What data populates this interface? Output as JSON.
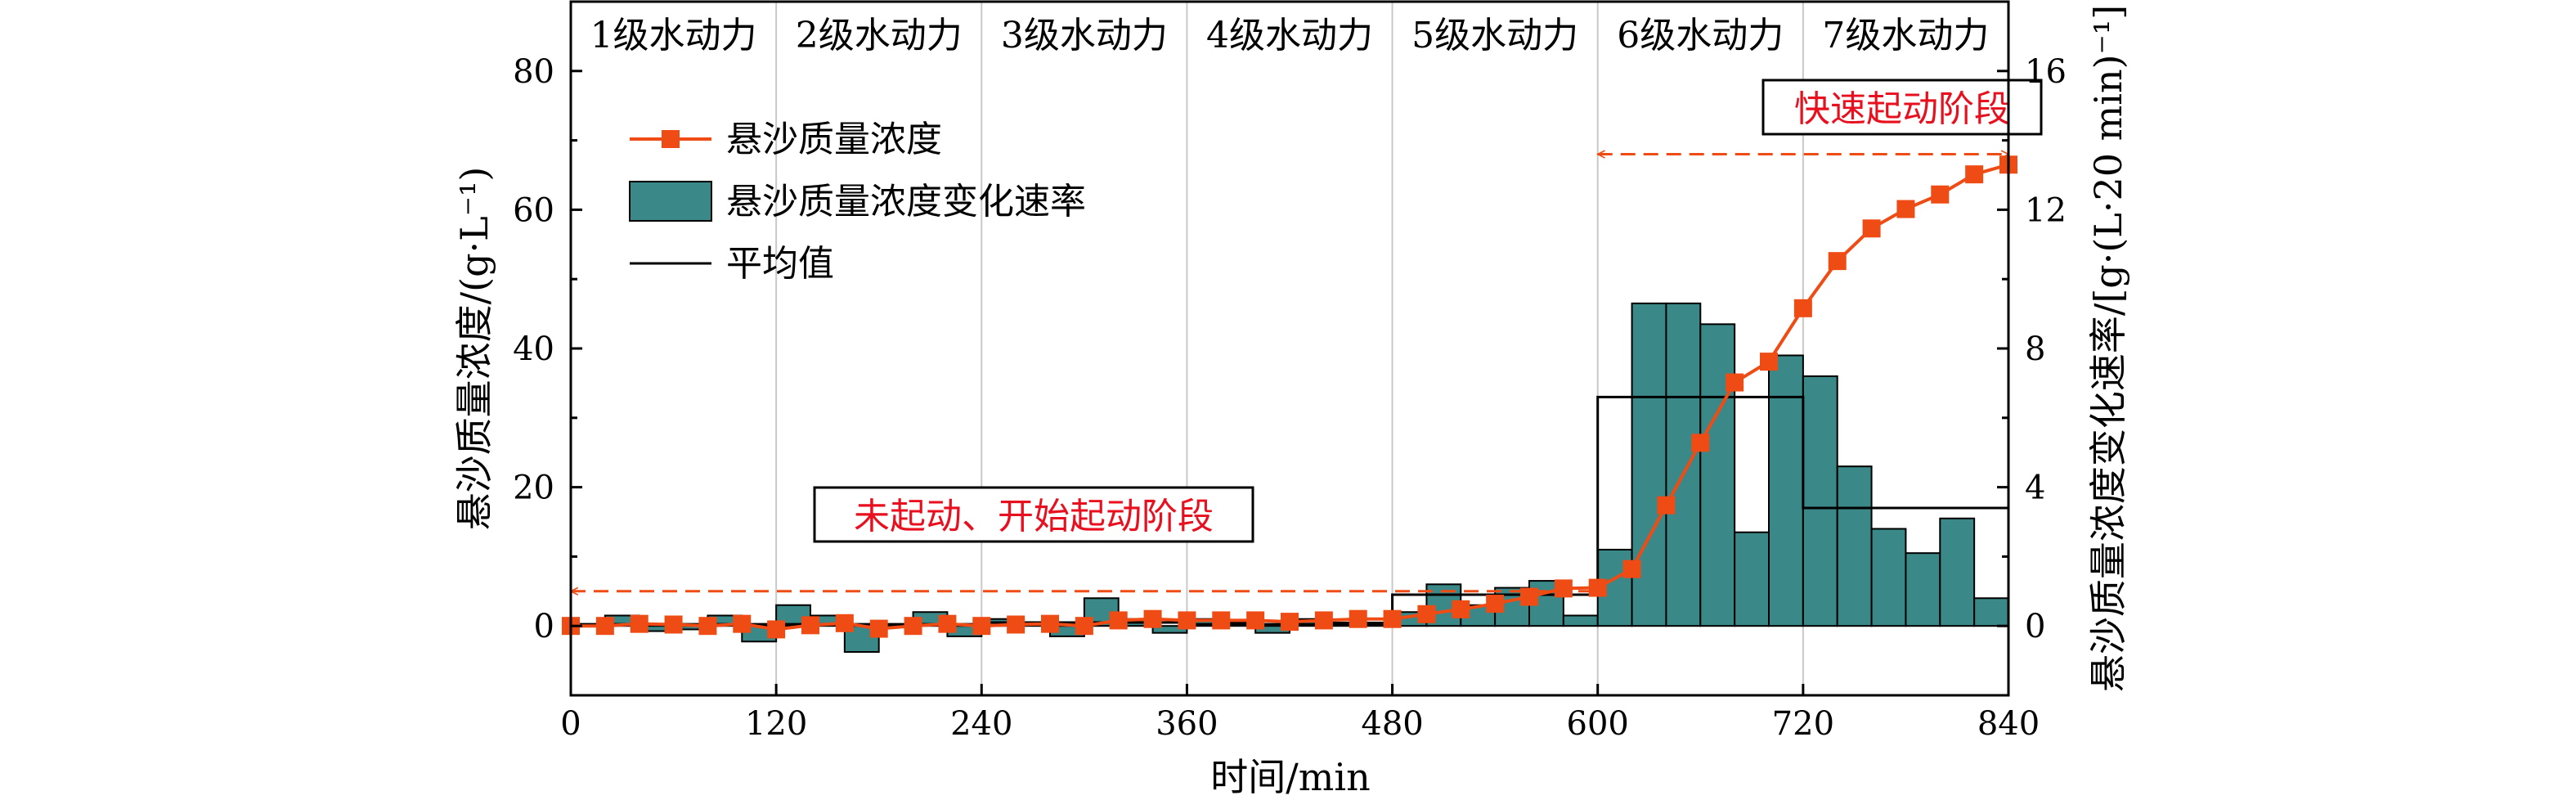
{
  "chart_data": {
    "type": "bar+line",
    "xlabel": "时间/min",
    "ylabel_left": "悬沙质量浓度/(g·L⁻¹)",
    "ylabel_right": "悬沙质量浓度变化速率/[g·(L·20 min)⁻¹]",
    "xlim": [
      0,
      840
    ],
    "ylim_left": [
      -10,
      90
    ],
    "ylim_right": [
      -2,
      18
    ],
    "x_ticks": [
      0,
      120,
      240,
      360,
      480,
      600,
      720,
      840
    ],
    "y_ticks_left": [
      0,
      20,
      40,
      60,
      80
    ],
    "y_ticks_right": [
      0,
      4,
      8,
      12,
      16
    ],
    "levels": [
      {
        "label": "1级水动力",
        "start": 0,
        "end": 120
      },
      {
        "label": "2级水动力",
        "start": 120,
        "end": 240
      },
      {
        "label": "3级水动力",
        "start": 240,
        "end": 360
      },
      {
        "label": "4级水动力",
        "start": 360,
        "end": 480
      },
      {
        "label": "5级水动力",
        "start": 480,
        "end": 600
      },
      {
        "label": "6级水动力",
        "start": 600,
        "end": 720
      },
      {
        "label": "7级水动力",
        "start": 720,
        "end": 840
      }
    ],
    "legend": [
      {
        "label": "悬沙质量浓度",
        "kind": "line-marker"
      },
      {
        "label": "悬沙质量浓度变化速率",
        "kind": "bar"
      },
      {
        "label": "平均值",
        "kind": "line"
      }
    ],
    "concentration": {
      "name": "悬沙质量浓度",
      "x": [
        0,
        20,
        40,
        60,
        80,
        100,
        120,
        140,
        160,
        180,
        200,
        220,
        240,
        260,
        280,
        300,
        320,
        340,
        360,
        380,
        400,
        420,
        440,
        460,
        480,
        500,
        520,
        540,
        560,
        580,
        600,
        620,
        640,
        660,
        680,
        700,
        720,
        740,
        760,
        780,
        800,
        820,
        840
      ],
      "y": [
        0,
        0,
        0.3,
        0.2,
        0,
        0.3,
        -0.5,
        0.1,
        0.4,
        -0.4,
        0,
        0.3,
        0,
        0.2,
        0.3,
        0,
        0.8,
        1,
        0.8,
        0.8,
        0.8,
        0.6,
        0.8,
        1,
        1,
        1.7,
        2.4,
        3.2,
        4.2,
        5.4,
        5.5,
        8.2,
        17.4,
        26.4,
        35.1,
        38.1,
        45.8,
        52.6,
        57.3,
        60.1,
        62.2,
        65.1,
        66.5
      ],
      "color": "#ef4b14"
    },
    "rate": {
      "name": "悬沙质量浓度变化速率",
      "x": [
        20,
        40,
        60,
        80,
        100,
        120,
        140,
        160,
        180,
        200,
        220,
        240,
        260,
        280,
        300,
        320,
        340,
        360,
        380,
        400,
        420,
        440,
        460,
        480,
        500,
        520,
        540,
        560,
        580,
        600,
        620,
        640,
        660,
        680,
        700,
        720,
        740,
        760,
        780,
        800,
        820,
        840
      ],
      "values": [
        0.05,
        0.3,
        -0.15,
        -0.1,
        0.3,
        -0.45,
        0.6,
        0.3,
        -0.75,
        0.05,
        0.4,
        -0.3,
        0.2,
        0.1,
        -0.3,
        0.8,
        0.2,
        -0.2,
        0.2,
        0.1,
        -0.2,
        0.2,
        0.1,
        0.1,
        0.4,
        1.2,
        0.6,
        1.1,
        1.3,
        0.3,
        2.2,
        9.3,
        9.3,
        8.7,
        2.7,
        7.8,
        7.2,
        4.6,
        2.8,
        2.1,
        3.1,
        0.8
      ],
      "color": "#3a8888"
    },
    "average": {
      "name": "平均值",
      "segments": [
        {
          "start": 0,
          "end": 120,
          "value": 0.05
        },
        {
          "start": 120,
          "end": 240,
          "value": 0.05
        },
        {
          "start": 240,
          "end": 360,
          "value": 0.1
        },
        {
          "start": 360,
          "end": 480,
          "value": 0.05
        },
        {
          "start": 480,
          "end": 600,
          "value": 0.9
        },
        {
          "start": 600,
          "end": 720,
          "value": 6.6
        },
        {
          "start": 720,
          "end": 840,
          "value": 3.4
        }
      ]
    },
    "annotations": [
      {
        "text": "未起动、开始起动阶段",
        "start": 0,
        "end": 600,
        "y": 5
      },
      {
        "text": "快速起动阶段",
        "start": 600,
        "end": 840,
        "y": 68
      }
    ],
    "annotation_color": "#e8101e"
  }
}
